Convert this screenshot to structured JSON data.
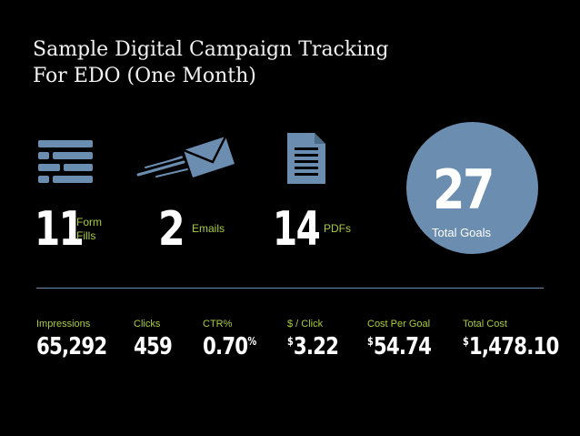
{
  "title": {
    "line1": "Sample Digital Campaign Tracking",
    "line2": "For EDO (One Month)"
  },
  "goals": [
    {
      "icon": "form-icon",
      "value": "11",
      "label1": "Form",
      "label2": "Fills"
    },
    {
      "icon": "envelope-icon",
      "value": "2",
      "label1": "Emails"
    },
    {
      "icon": "document-icon",
      "value": "14",
      "label1": "PDFs"
    }
  ],
  "total": {
    "value": "27",
    "label": "Total Goals"
  },
  "metrics": [
    {
      "label": "Impressions",
      "value": "65,292"
    },
    {
      "label": "Clicks",
      "value": "459"
    },
    {
      "label": "CTR%",
      "value": "0.70",
      "suffix": "%"
    },
    {
      "label": "$ / Click",
      "prefix": "$",
      "value": "3.22"
    },
    {
      "label": "Cost Per Goal",
      "prefix": "$",
      "value": "54.74"
    },
    {
      "label": "Total Cost",
      "prefix": "$",
      "value": "1,478.10"
    }
  ],
  "colors": {
    "accent_green": "#a9cc3d",
    "accent_blue": "#6b8eb0",
    "background": "#000000"
  }
}
